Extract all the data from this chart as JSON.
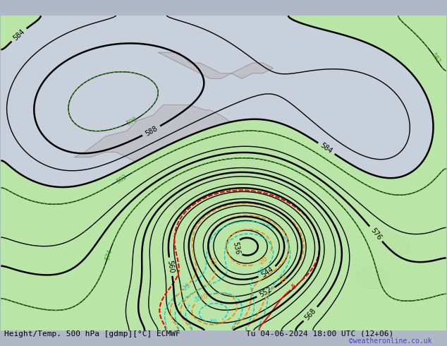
{
  "title_left": "Height/Temp. 500 hPa [gdmp][°C] ECMWF",
  "title_right": "Tu 04-06-2024 18:00 UTC (12+06)",
  "watermark": "©weatheronline.co.uk",
  "bg_color": "#d0d0d8",
  "land_color": "#c8c8d0",
  "green_fill_color": "#b8e8a0",
  "map_extent": [
    100,
    185,
    -55,
    5
  ],
  "fig_width": 6.34,
  "fig_height": 4.9,
  "dpi": 100
}
